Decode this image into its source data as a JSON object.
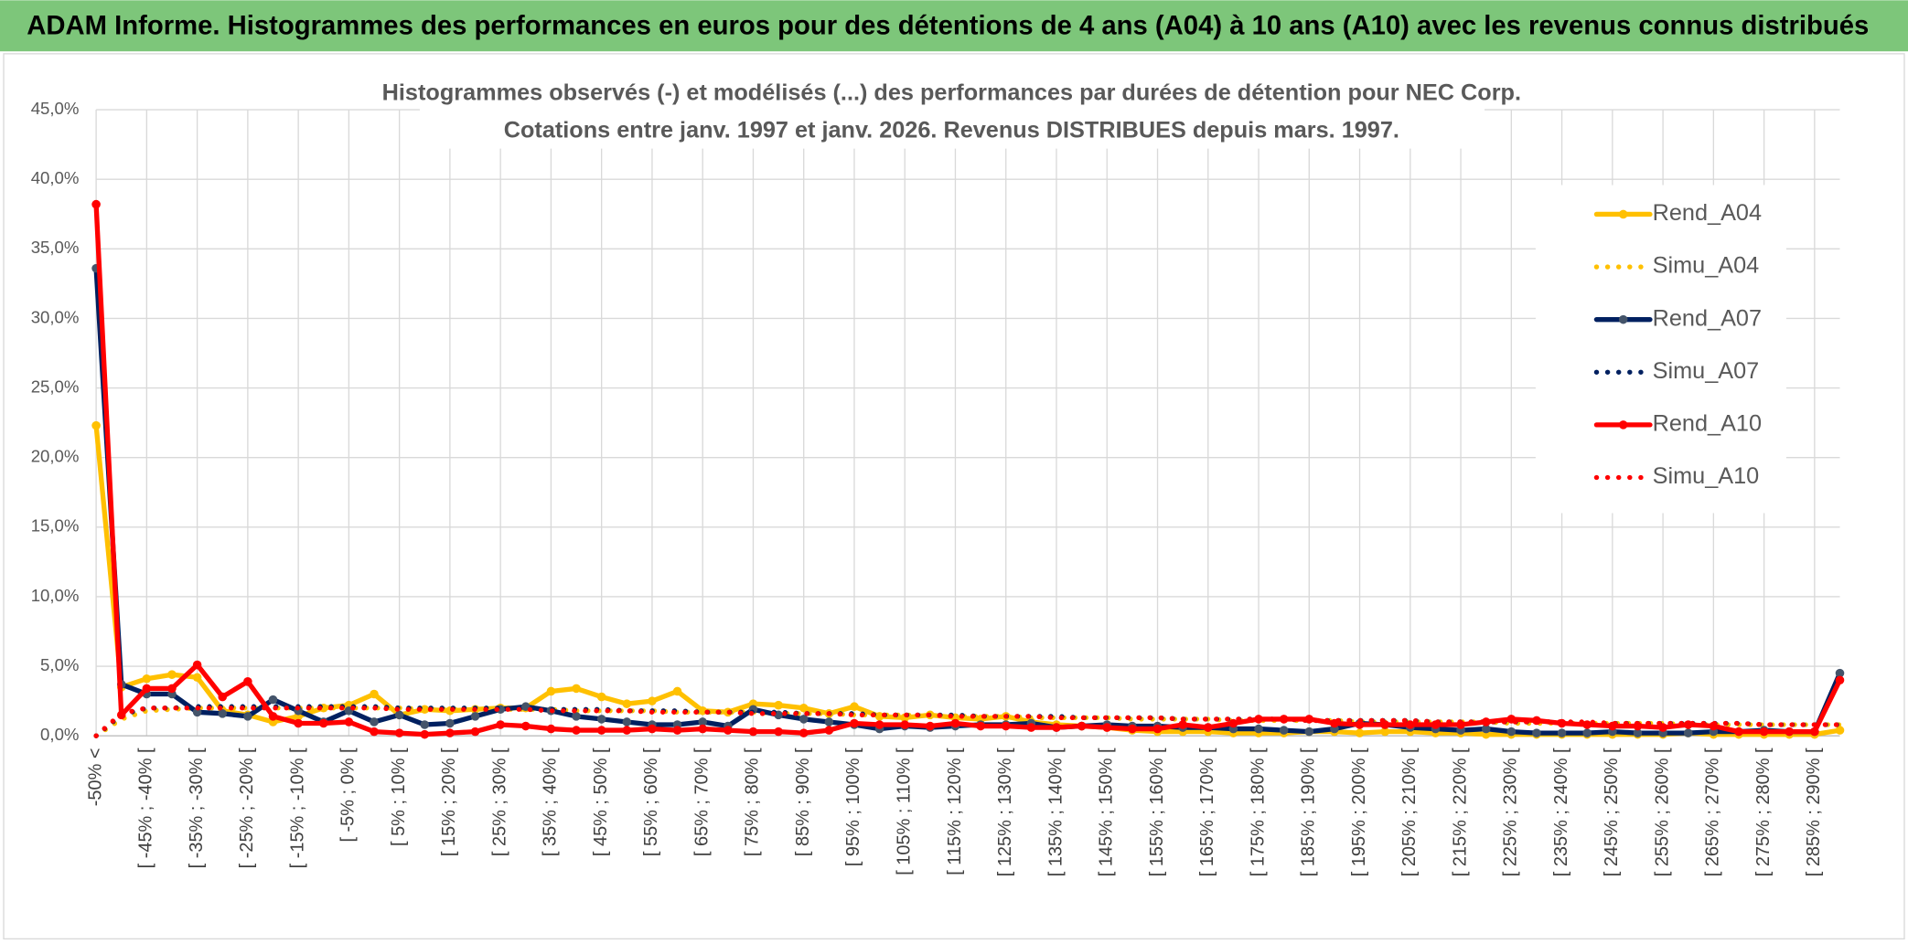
{
  "header": {
    "title": "ADAM Informe. Histogrammes des performances en euros pour des détentions de 4 ans (A04) à 10 ans (A10) avec les revenus connus distribués"
  },
  "chart_data": {
    "type": "line",
    "title": "Histogrammes observés (-) et modélisés (...) des performances par durées de détention pour NEC Corp.",
    "subtitle": "Cotations entre janv. 1997 et janv. 2026. Revenus DISTRIBUES depuis mars. 1997.",
    "categories": [
      "-50% <",
      null,
      "[ -45% ; -40% [",
      null,
      "[ -35% ; -30% [",
      null,
      "[ -25% ; -20% [",
      null,
      "[ -15% ; -10% [",
      null,
      "[ -5% ; 0% [",
      null,
      "[ 5% ; 10% [",
      null,
      "[ 15% ; 20% [",
      null,
      "[ 25% ; 30% [",
      null,
      "[ 35% ; 40% [",
      null,
      "[ 45% ; 50% [",
      null,
      "[ 55% ; 60% [",
      null,
      "[ 65% ; 70% [",
      null,
      "[ 75% ; 80% [",
      null,
      "[ 85% ; 90% [",
      null,
      "[ 95% ; 100% [",
      null,
      "[ 105% ; 110% [",
      null,
      "[ 115% ; 120% [",
      null,
      "[ 125% ; 130% [",
      null,
      "[ 135% ; 140% [",
      null,
      "[ 145% ; 150% [",
      null,
      "[ 155% ; 160% [",
      null,
      "[ 165% ; 170% [",
      null,
      "[ 175% ; 180% [",
      null,
      "[ 185% ; 190% [",
      null,
      "[ 195% ; 200% [",
      null,
      "[ 205% ; 210% [",
      null,
      "[ 215% ; 220% [",
      null,
      "[ 225% ; 230% [",
      null,
      "[ 235% ; 240% [",
      null,
      "[ 245% ; 250% [",
      null,
      "[ 255% ; 260% [",
      null,
      "[ 265% ; 270% [",
      null,
      "[ 275% ; 280% [",
      null,
      "[ 285% ; 290% [",
      null
    ],
    "series": [
      {
        "name": "Rend_A04",
        "color": "#ffc000",
        "line_style": "solid",
        "marker": true,
        "values": [
          22.3,
          3.5,
          4.1,
          4.4,
          4.2,
          1.8,
          1.5,
          1.0,
          1.4,
          2.0,
          2.2,
          3.0,
          1.5,
          1.9,
          1.8,
          1.9,
          2.0,
          2.0,
          3.2,
          3.4,
          2.8,
          2.3,
          2.5,
          3.2,
          1.8,
          1.7,
          2.3,
          2.2,
          2.0,
          1.6,
          2.1,
          1.4,
          1.3,
          1.5,
          1.3,
          1.2,
          1.4,
          1.0,
          0.8,
          0.7,
          0.6,
          0.4,
          0.3,
          0.3,
          0.3,
          0.2,
          0.2,
          0.2,
          0.3,
          0.3,
          0.2,
          0.3,
          0.3,
          0.2,
          0.2,
          0.1,
          0.1,
          0.1,
          0.1,
          0.1,
          0.1,
          0.1,
          0.1,
          0.2,
          0.1,
          0.1,
          0.1,
          0.1,
          0.1,
          0.4
        ]
      },
      {
        "name": "Simu_A04",
        "color": "#ffc000",
        "line_style": "dotted",
        "marker": false,
        "values": [
          0,
          1.2,
          1.8,
          1.9,
          2.0,
          2.0,
          2.0,
          2.0,
          2.0,
          2.0,
          2.0,
          2.0,
          2.0,
          1.9,
          1.9,
          1.9,
          1.9,
          1.9,
          1.9,
          1.8,
          1.8,
          1.8,
          1.8,
          1.7,
          1.7,
          1.7,
          1.7,
          1.6,
          1.6,
          1.6,
          1.5,
          1.5,
          1.5,
          1.4,
          1.4,
          1.4,
          1.4,
          1.3,
          1.3,
          1.3,
          1.3,
          1.2,
          1.2,
          1.2,
          1.2,
          1.1,
          1.1,
          1.1,
          1.1,
          1.1,
          1.0,
          1.0,
          1.0,
          1.0,
          1.0,
          1.0,
          0.9,
          0.9,
          0.9,
          0.9,
          0.9,
          0.9,
          0.9,
          0.8,
          0.8,
          0.8,
          0.8,
          0.8,
          0.8,
          0.8
        ]
      },
      {
        "name": "Rend_A07",
        "color": "#002060",
        "line_style": "solid",
        "marker": true,
        "values": [
          33.6,
          3.7,
          3.0,
          3.0,
          1.7,
          1.6,
          1.4,
          2.6,
          1.8,
          1.0,
          1.8,
          1.0,
          1.5,
          0.8,
          0.9,
          1.4,
          1.9,
          2.1,
          1.8,
          1.4,
          1.2,
          1.0,
          0.8,
          0.8,
          1.0,
          0.7,
          1.9,
          1.5,
          1.2,
          1.0,
          0.8,
          0.5,
          0.7,
          0.6,
          0.7,
          0.8,
          0.8,
          0.9,
          0.6,
          0.7,
          0.8,
          0.7,
          0.7,
          0.6,
          0.6,
          0.5,
          0.5,
          0.4,
          0.3,
          0.5,
          0.9,
          0.8,
          0.6,
          0.5,
          0.4,
          0.5,
          0.3,
          0.2,
          0.2,
          0.2,
          0.3,
          0.2,
          0.2,
          0.2,
          0.3,
          0.3,
          0.4,
          0.3,
          0.3,
          4.5
        ]
      },
      {
        "name": "Simu_A07",
        "color": "#002060",
        "line_style": "dotted",
        "marker": false,
        "values": [
          0,
          1.5,
          2.0,
          2.0,
          2.1,
          2.1,
          2.1,
          2.1,
          2.1,
          2.1,
          2.1,
          2.1,
          2.0,
          2.0,
          2.0,
          2.0,
          2.0,
          1.9,
          1.9,
          1.9,
          1.9,
          1.8,
          1.8,
          1.8,
          1.7,
          1.7,
          1.7,
          1.7,
          1.6,
          1.6,
          1.6,
          1.5,
          1.5,
          1.5,
          1.5,
          1.4,
          1.4,
          1.4,
          1.4,
          1.3,
          1.3,
          1.3,
          1.3,
          1.2,
          1.2,
          1.2,
          1.2,
          1.2,
          1.1,
          1.1,
          1.1,
          1.1,
          1.1,
          1.0,
          1.0,
          1.0,
          1.0,
          1.0,
          1.0,
          0.9,
          0.9,
          0.9,
          0.9,
          0.9,
          0.9,
          0.9,
          0.8,
          0.8,
          0.8,
          0.8
        ]
      },
      {
        "name": "Rend_A10",
        "color": "#ff0000",
        "line_style": "solid",
        "marker": true,
        "values": [
          38.2,
          1.5,
          3.4,
          3.4,
          5.1,
          2.8,
          3.9,
          1.4,
          0.9,
          0.9,
          1.0,
          0.3,
          0.2,
          0.1,
          0.2,
          0.3,
          0.8,
          0.7,
          0.5,
          0.4,
          0.4,
          0.4,
          0.5,
          0.4,
          0.5,
          0.4,
          0.3,
          0.3,
          0.2,
          0.4,
          0.9,
          0.8,
          0.8,
          0.7,
          0.9,
          0.7,
          0.7,
          0.6,
          0.6,
          0.7,
          0.6,
          0.5,
          0.5,
          0.8,
          0.6,
          0.9,
          1.2,
          1.2,
          1.2,
          0.9,
          0.8,
          0.8,
          0.8,
          0.8,
          0.8,
          1.0,
          1.2,
          1.1,
          0.9,
          0.8,
          0.7,
          0.7,
          0.6,
          0.8,
          0.7,
          0.3,
          0.3,
          0.3,
          0.3,
          4.0
        ]
      },
      {
        "name": "Simu_A10",
        "color": "#ff0000",
        "line_style": "dotted",
        "marker": false,
        "values": [
          0,
          1.6,
          2.0,
          2.0,
          2.0,
          2.0,
          2.0,
          2.0,
          2.0,
          2.0,
          2.0,
          2.0,
          1.9,
          1.9,
          1.9,
          1.9,
          1.9,
          1.9,
          1.8,
          1.8,
          1.8,
          1.8,
          1.7,
          1.7,
          1.7,
          1.7,
          1.6,
          1.6,
          1.6,
          1.6,
          1.5,
          1.5,
          1.5,
          1.5,
          1.4,
          1.4,
          1.4,
          1.4,
          1.3,
          1.3,
          1.3,
          1.3,
          1.3,
          1.2,
          1.2,
          1.2,
          1.2,
          1.2,
          1.1,
          1.1,
          1.1,
          1.1,
          1.1,
          1.0,
          1.0,
          1.0,
          1.0,
          1.0,
          1.0,
          1.0,
          0.9,
          0.9,
          0.9,
          0.9,
          0.9,
          0.9,
          0.8,
          0.8,
          0.8,
          0.8
        ]
      }
    ],
    "ylim": [
      0,
      45
    ],
    "yticks": [
      {
        "value": 0,
        "label": "0,0%"
      },
      {
        "value": 5,
        "label": "5,0%"
      },
      {
        "value": 10,
        "label": "10,0%"
      },
      {
        "value": 15,
        "label": "15,0%"
      },
      {
        "value": 20,
        "label": "20,0%"
      },
      {
        "value": 25,
        "label": "25,0%"
      },
      {
        "value": 30,
        "label": "30,0%"
      },
      {
        "value": 35,
        "label": "35,0%"
      },
      {
        "value": 40,
        "label": "40,0%"
      },
      {
        "value": 45,
        "label": "45,0%"
      }
    ],
    "grid": true,
    "legend": "upper right"
  }
}
